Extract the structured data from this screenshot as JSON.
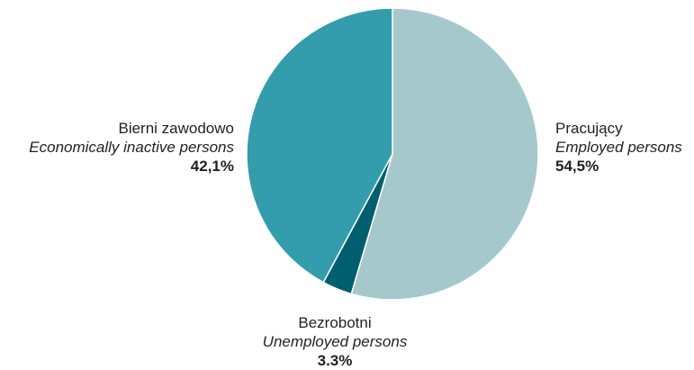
{
  "chart_data": {
    "type": "pie",
    "start_angle_deg": 0,
    "direction": "clockwise",
    "slices": [
      {
        "name_pl": "Pracujący",
        "name_en": "Employed persons",
        "value": 54.5,
        "value_label": "54,5%",
        "color": "#a5c8cd"
      },
      {
        "name_pl": "Bezrobotni",
        "name_en": "Unemployed persons",
        "value": 3.3,
        "value_label": "3.3%",
        "color": "#005f6e"
      },
      {
        "name_pl": "Bierni zawodowo",
        "name_en": "Economically inactive persons",
        "value": 42.1,
        "value_label": "42,1%",
        "color": "#339cad"
      }
    ],
    "slice_border_color": "#ffffff"
  }
}
